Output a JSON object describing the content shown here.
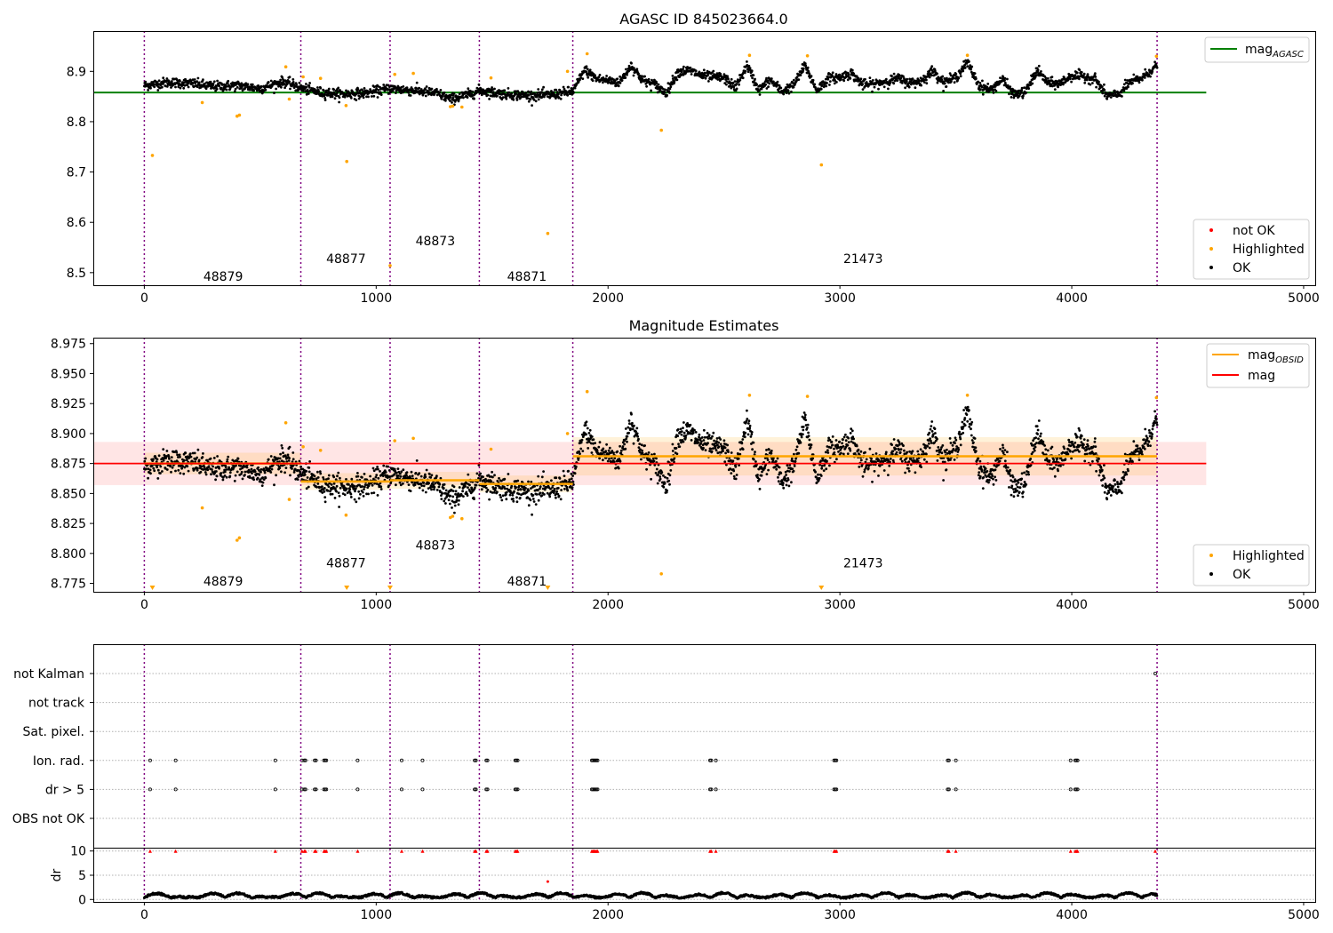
{
  "chart_data": [
    {
      "type": "scatter",
      "title": "AGASC ID 845023664.0",
      "xlim": [
        -220,
        5050
      ],
      "ylim": [
        8.475,
        8.98
      ],
      "x_ticks": [
        0,
        1000,
        2000,
        3000,
        4000,
        5000
      ],
      "y_ticks": [
        8.5,
        8.6,
        8.7,
        8.8,
        8.9
      ],
      "legend_upper": {
        "placement": "top-right",
        "entries": [
          {
            "label": "mag",
            "sub": "AGASC",
            "color": "#008000"
          }
        ]
      },
      "legend_lower": {
        "placement": "bottom-right",
        "entries": [
          {
            "label": "not OK",
            "color": "#ff0000"
          },
          {
            "label": "Highlighted",
            "color": "#ffa500"
          },
          {
            "label": "OK",
            "color": "#000000"
          }
        ]
      },
      "agasc_mag": 8.858,
      "agasc_line_x": [
        -220,
        4580
      ],
      "obs_boundaries": [
        0,
        675,
        1060,
        1445,
        1848,
        4368
      ],
      "obs_labels": [
        {
          "text": "48879",
          "x": 340,
          "y": 8.493
        },
        {
          "text": "48877",
          "x": 870,
          "y": 8.528
        },
        {
          "text": "48873",
          "x": 1255,
          "y": 8.563
        },
        {
          "text": "48871",
          "x": 1650,
          "y": 8.493
        },
        {
          "text": "21473",
          "x": 3100,
          "y": 8.528
        }
      ],
      "highlighted_points": [
        {
          "x": 35,
          "y": 8.733
        },
        {
          "x": 250,
          "y": 8.838
        },
        {
          "x": 400,
          "y": 8.811
        },
        {
          "x": 410,
          "y": 8.813
        },
        {
          "x": 610,
          "y": 8.909
        },
        {
          "x": 625,
          "y": 8.845
        },
        {
          "x": 685,
          "y": 8.889
        },
        {
          "x": 760,
          "y": 8.886
        },
        {
          "x": 870,
          "y": 8.832
        },
        {
          "x": 873,
          "y": 8.721
        },
        {
          "x": 1060,
          "y": 8.514
        },
        {
          "x": 1080,
          "y": 8.894
        },
        {
          "x": 1160,
          "y": 8.896
        },
        {
          "x": 1320,
          "y": 8.83
        },
        {
          "x": 1330,
          "y": 8.831
        },
        {
          "x": 1370,
          "y": 8.829
        },
        {
          "x": 1495,
          "y": 8.887
        },
        {
          "x": 1740,
          "y": 8.578
        },
        {
          "x": 1825,
          "y": 8.9
        },
        {
          "x": 1910,
          "y": 8.935
        },
        {
          "x": 2230,
          "y": 8.783
        },
        {
          "x": 2610,
          "y": 8.932
        },
        {
          "x": 2860,
          "y": 8.931
        },
        {
          "x": 2920,
          "y": 8.714
        },
        {
          "x": 3550,
          "y": 8.932
        },
        {
          "x": 4365,
          "y": 8.93
        }
      ],
      "ok_trend": {
        "x": [
          0,
          100,
          200,
          300,
          400,
          500,
          600,
          675,
          760,
          860,
          960,
          1060,
          1160,
          1260,
          1320,
          1400,
          1445,
          1550,
          1650,
          1750,
          1848,
          1900,
          1950,
          2000,
          2050,
          2100,
          2150,
          2200,
          2250,
          2300,
          2350,
          2400,
          2450,
          2500,
          2550,
          2600,
          2650,
          2700,
          2750,
          2800,
          2850,
          2900,
          2950,
          3000,
          3050,
          3100,
          3150,
          3200,
          3250,
          3300,
          3350,
          3400,
          3450,
          3500,
          3550,
          3600,
          3650,
          3700,
          3750,
          3800,
          3850,
          3900,
          3950,
          4000,
          4050,
          4100,
          4150,
          4200,
          4250,
          4300,
          4368
        ],
        "y": [
          8.872,
          8.878,
          8.876,
          8.87,
          8.872,
          8.866,
          8.88,
          8.867,
          8.858,
          8.855,
          8.857,
          8.866,
          8.862,
          8.857,
          8.845,
          8.854,
          8.862,
          8.855,
          8.852,
          8.853,
          8.86,
          8.903,
          8.885,
          8.882,
          8.878,
          8.912,
          8.882,
          8.874,
          8.857,
          8.898,
          8.902,
          8.892,
          8.889,
          8.887,
          8.868,
          8.912,
          8.863,
          8.883,
          8.86,
          8.872,
          8.912,
          8.862,
          8.886,
          8.888,
          8.896,
          8.873,
          8.875,
          8.88,
          8.886,
          8.877,
          8.88,
          8.901,
          8.878,
          8.888,
          8.918,
          8.872,
          8.863,
          8.884,
          8.854,
          8.858,
          8.902,
          8.876,
          8.876,
          8.892,
          8.89,
          8.885,
          8.852,
          8.853,
          8.878,
          8.886,
          8.912
        ],
        "scatter": 0.009
      }
    },
    {
      "type": "scatter",
      "title": "Magnitude Estimates",
      "xlim": [
        -220,
        5050
      ],
      "ylim": [
        8.768,
        8.98
      ],
      "x_ticks": [
        0,
        1000,
        2000,
        3000,
        4000,
        5000
      ],
      "y_ticks": [
        8.775,
        8.8,
        8.825,
        8.85,
        8.875,
        8.9,
        8.925,
        8.95,
        8.975
      ],
      "y_tick_labels": [
        "8.775",
        "8.800",
        "8.825",
        "8.850",
        "8.875",
        "8.900",
        "8.925",
        "8.950",
        "8.975"
      ],
      "legend_upper": {
        "placement": "top-right",
        "entries": [
          {
            "label": "mag",
            "sub": "OBSID",
            "color": "#ffa500"
          },
          {
            "label": "mag",
            "color": "#ff0000"
          }
        ]
      },
      "legend_lower": {
        "placement": "bottom-right",
        "entries": [
          {
            "label": "Highlighted",
            "color": "#ffa500"
          },
          {
            "label": "OK",
            "color": "#000000"
          }
        ]
      },
      "mag": 8.875,
      "mag_band": [
        8.857,
        8.893
      ],
      "mag_line_x": [
        -220,
        4580
      ],
      "obsid_mags": [
        {
          "x0": 0,
          "x1": 675,
          "mag": 8.875,
          "band": [
            8.866,
            8.884
          ]
        },
        {
          "x0": 675,
          "x1": 1060,
          "mag": 8.86,
          "band": [
            8.853,
            8.867
          ]
        },
        {
          "x0": 1060,
          "x1": 1445,
          "mag": 8.861,
          "band": [
            8.854,
            8.868
          ]
        },
        {
          "x0": 1445,
          "x1": 1848,
          "mag": 8.858,
          "band": [
            8.851,
            8.865
          ]
        },
        {
          "x0": 1848,
          "x1": 4368,
          "mag": 8.881,
          "band": [
            8.865,
            8.897
          ]
        }
      ],
      "obs_boundaries": [
        0,
        675,
        1060,
        1445,
        1848,
        4368
      ],
      "obs_labels": [
        {
          "text": "48879",
          "x": 340,
          "y": 8.777
        },
        {
          "text": "48877",
          "x": 870,
          "y": 8.792
        },
        {
          "text": "48873",
          "x": 1255,
          "y": 8.807
        },
        {
          "text": "48871",
          "x": 1650,
          "y": 8.777
        },
        {
          "text": "21473",
          "x": 3100,
          "y": 8.792
        }
      ],
      "highlighted_points": [
        {
          "x": 250,
          "y": 8.838
        },
        {
          "x": 400,
          "y": 8.811
        },
        {
          "x": 410,
          "y": 8.813
        },
        {
          "x": 610,
          "y": 8.909
        },
        {
          "x": 625,
          "y": 8.845
        },
        {
          "x": 685,
          "y": 8.889
        },
        {
          "x": 760,
          "y": 8.886
        },
        {
          "x": 870,
          "y": 8.832
        },
        {
          "x": 1080,
          "y": 8.894
        },
        {
          "x": 1160,
          "y": 8.896
        },
        {
          "x": 1320,
          "y": 8.83
        },
        {
          "x": 1330,
          "y": 8.831
        },
        {
          "x": 1370,
          "y": 8.829
        },
        {
          "x": 1495,
          "y": 8.887
        },
        {
          "x": 1825,
          "y": 8.9
        },
        {
          "x": 1910,
          "y": 8.935
        },
        {
          "x": 2230,
          "y": 8.783
        },
        {
          "x": 2610,
          "y": 8.932
        },
        {
          "x": 2860,
          "y": 8.931
        },
        {
          "x": 3550,
          "y": 8.932
        },
        {
          "x": 4365,
          "y": 8.93
        }
      ],
      "offscale_markers_x": [
        35,
        873,
        1060,
        1740,
        2920
      ],
      "ok_trend_ref": 0
    },
    {
      "type": "scatter",
      "title": "",
      "xlim": [
        -220,
        5050
      ],
      "x_ticks": [
        0,
        1000,
        2000,
        3000,
        4000,
        5000
      ],
      "flag_rows": [
        "not Kalman",
        "not track",
        "Sat. pixel.",
        "Ion. rad.",
        "dr > 5",
        "OBS not OK"
      ],
      "flag_points": {
        "not Kalman": [
          4360
        ],
        "not track": [],
        "Sat. pixel.": [],
        "Ion. rad.": [
          25,
          135,
          565,
          680,
          690,
          695,
          735,
          740,
          775,
          780,
          785,
          920,
          1110,
          1200,
          1425,
          1430,
          1475,
          1480,
          1600,
          1605,
          1610,
          1930,
          1935,
          1940,
          1945,
          1950,
          1955,
          2440,
          2445,
          2465,
          2975,
          2980,
          2985,
          3465,
          3470,
          3500,
          3995,
          4015,
          4020,
          4025
        ],
        "dr > 5": [
          25,
          135,
          565,
          680,
          690,
          695,
          735,
          740,
          775,
          780,
          785,
          920,
          1110,
          1200,
          1425,
          1430,
          1475,
          1480,
          1600,
          1605,
          1610,
          1930,
          1935,
          1940,
          1945,
          1950,
          1955,
          2440,
          2445,
          2465,
          2975,
          2980,
          2985,
          3465,
          3470,
          3500,
          3995,
          4015,
          4020,
          4025
        ],
        "OBS not OK": []
      },
      "dr_ylabel": "dr",
      "dr_ylim": [
        -0.5,
        10.5
      ],
      "dr_y_ticks": [
        0,
        5,
        10
      ],
      "dr_clipped_x": [
        25,
        135,
        565,
        680,
        690,
        695,
        735,
        740,
        775,
        780,
        785,
        920,
        1110,
        1200,
        1425,
        1430,
        1475,
        1480,
        1600,
        1605,
        1610,
        1930,
        1935,
        1940,
        1945,
        1950,
        1955,
        2440,
        2445,
        2465,
        2975,
        2980,
        2985,
        3465,
        3470,
        3500,
        3995,
        4015,
        4020,
        4025,
        4360
      ],
      "dr_highlighted": [
        {
          "x": 1740,
          "y": 3.7
        }
      ],
      "dr_typical": [
        0.2,
        1.4
      ],
      "obs_boundaries": [
        0,
        675,
        1060,
        1445,
        1848,
        4368
      ]
    }
  ]
}
